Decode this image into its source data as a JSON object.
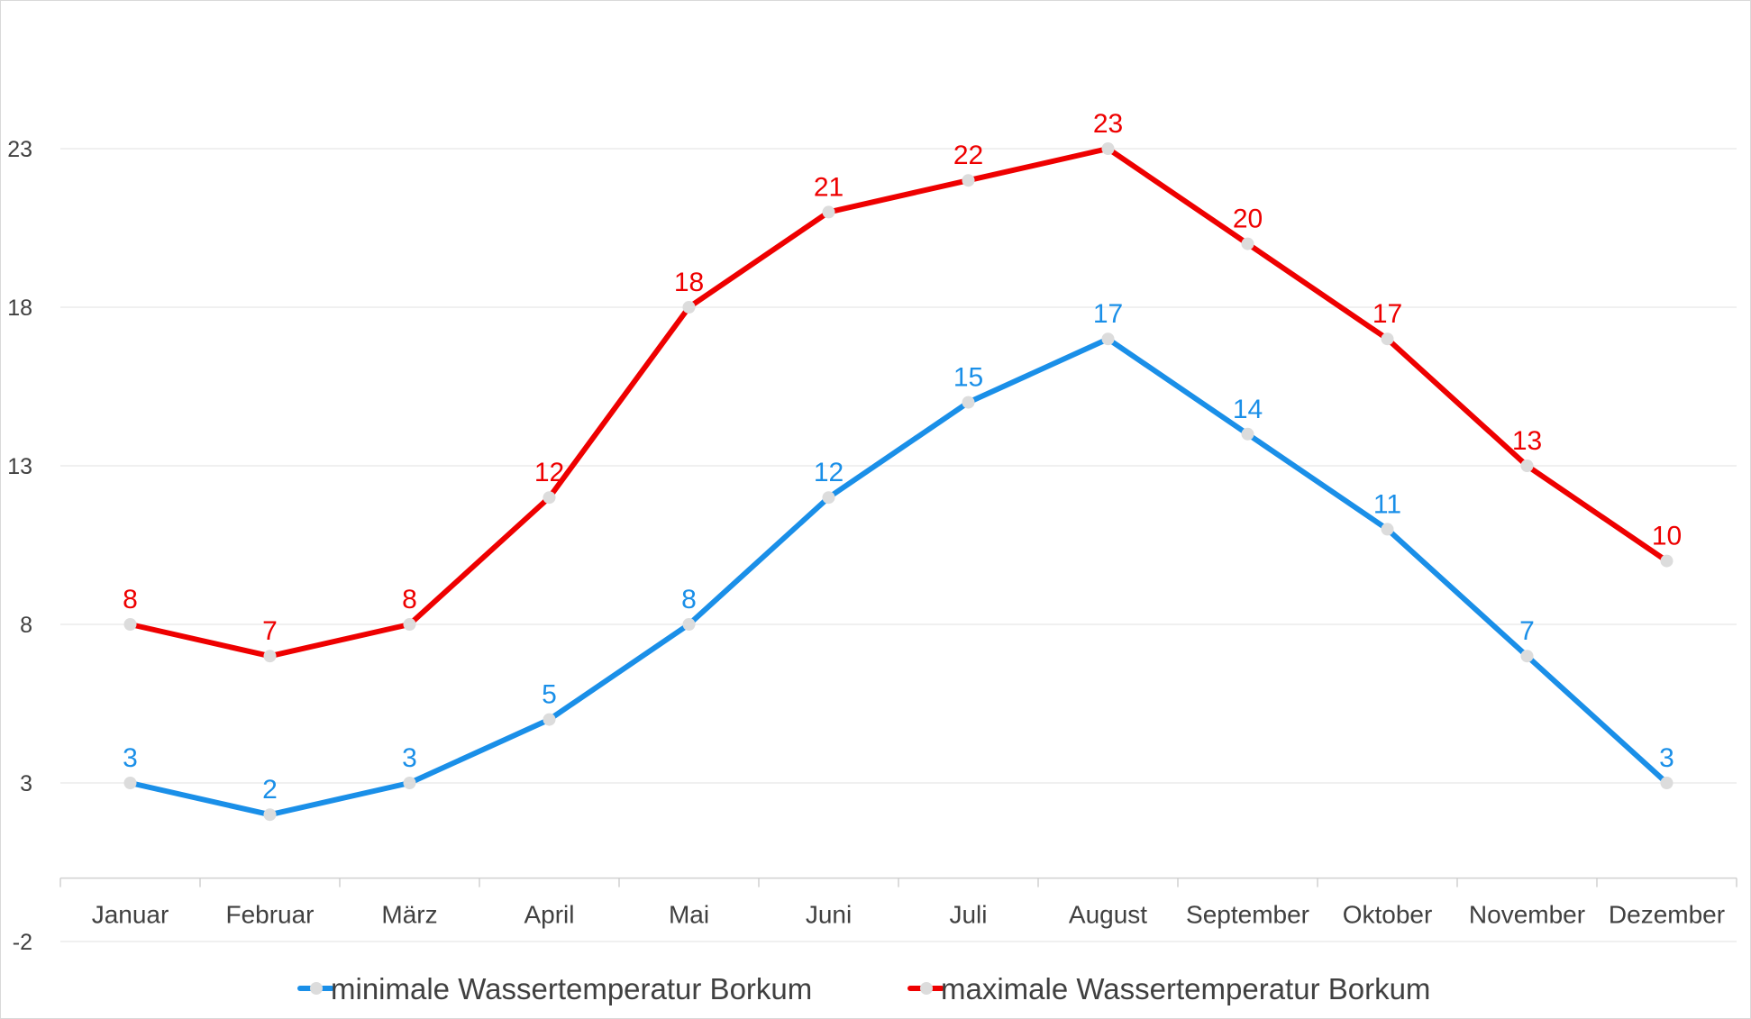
{
  "chart_data": {
    "type": "line",
    "categories": [
      "Januar",
      "Februar",
      "März",
      "April",
      "Mai",
      "Juni",
      "Juli",
      "August",
      "September",
      "Oktober",
      "November",
      "Dezember"
    ],
    "series": [
      {
        "name": "minimale Wassertemperatur Borkum",
        "values": [
          3,
          2,
          3,
          5,
          8,
          12,
          15,
          17,
          14,
          11,
          7,
          3
        ],
        "color": "#1a8fe8"
      },
      {
        "name": "maximale Wassertemperatur Borkum",
        "values": [
          8,
          7,
          8,
          12,
          18,
          21,
          22,
          23,
          20,
          17,
          13,
          10
        ],
        "color": "#ee0000"
      }
    ],
    "yticks": [
      -2,
      3,
      8,
      13,
      18,
      23
    ],
    "ylim": [
      -2,
      27.7
    ],
    "grid": true,
    "legend": "bottom",
    "marker_color": "#dcdcdc",
    "title": "",
    "xlabel": "",
    "ylabel": ""
  }
}
